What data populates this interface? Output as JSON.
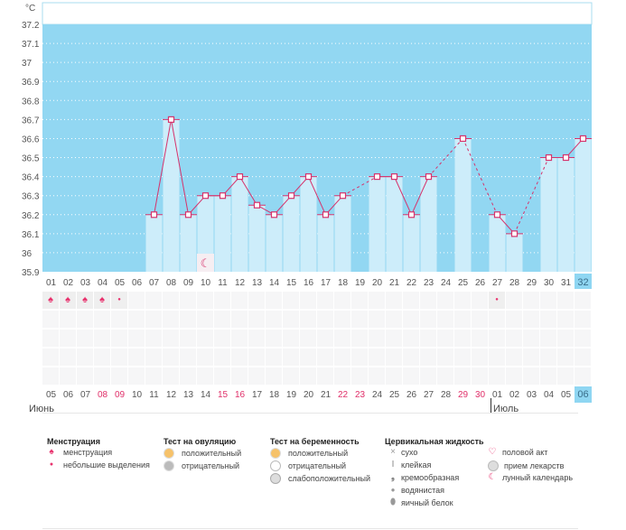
{
  "chart_data": {
    "type": "bar",
    "ylabel": "°C",
    "ylim": [
      35.9,
      37.2
    ],
    "yticks": [
      "37.2",
      "37.1",
      "37",
      "36.9",
      "36.8",
      "36.7",
      "36.6",
      "36.5",
      "36.4",
      "36.3",
      "36.2",
      "36.1",
      "36",
      "35.9"
    ],
    "categories": [
      "01",
      "02",
      "03",
      "04",
      "05",
      "06",
      "07",
      "08",
      "09",
      "10",
      "11",
      "12",
      "13",
      "14",
      "15",
      "16",
      "17",
      "18",
      "19",
      "20",
      "21",
      "22",
      "23",
      "24",
      "25",
      "26",
      "27",
      "28",
      "29",
      "30",
      "31",
      "32"
    ],
    "values": [
      null,
      null,
      null,
      null,
      null,
      null,
      36.2,
      36.7,
      36.2,
      36.3,
      36.3,
      36.4,
      36.25,
      36.2,
      36.3,
      36.4,
      36.2,
      36.3,
      null,
      36.4,
      36.4,
      36.2,
      36.4,
      null,
      36.6,
      null,
      36.2,
      36.1,
      null,
      36.5,
      36.5,
      36.6
    ],
    "current_day": "32"
  },
  "colors": {
    "background": "#92d7f2",
    "bar": "#cdedfa",
    "line": "#d6336c",
    "weekend": "#e0306a"
  },
  "moon_day": "10",
  "menstruation_days": {
    "heavy": [
      "01",
      "02",
      "03",
      "04"
    ],
    "light": [
      "05",
      "27"
    ]
  },
  "dates": [
    "05",
    "06",
    "07",
    "08",
    "09",
    "10",
    "11",
    "12",
    "13",
    "14",
    "15",
    "16",
    "17",
    "18",
    "19",
    "20",
    "21",
    "22",
    "23",
    "24",
    "25",
    "26",
    "27",
    "28",
    "29",
    "30",
    "01",
    "02",
    "03",
    "04",
    "05",
    "06"
  ],
  "weekend_dates_idx": [
    3,
    4,
    10,
    11,
    17,
    18,
    24,
    25
  ],
  "months": {
    "june": "Июнь",
    "july": "Июль"
  },
  "legend": {
    "menstruation": {
      "title": "Менструация",
      "items": [
        "менструация",
        "небольшие выделения"
      ]
    },
    "ovulation": {
      "title": "Тест на овуляцию",
      "items": [
        "положительный",
        "отрицательный"
      ]
    },
    "pregnancy": {
      "title": "Тест на беременность",
      "items": [
        "положительный",
        "отрицательный",
        "слабоположительный"
      ]
    },
    "cervical": {
      "title": "Цервикальная жидкость",
      "items": [
        "сухо",
        "клейкая",
        "кремообразная",
        "водянистая",
        "яичный белок"
      ]
    },
    "other": {
      "items": [
        "половой акт",
        "прием лекарств",
        "лунный календарь"
      ]
    }
  }
}
